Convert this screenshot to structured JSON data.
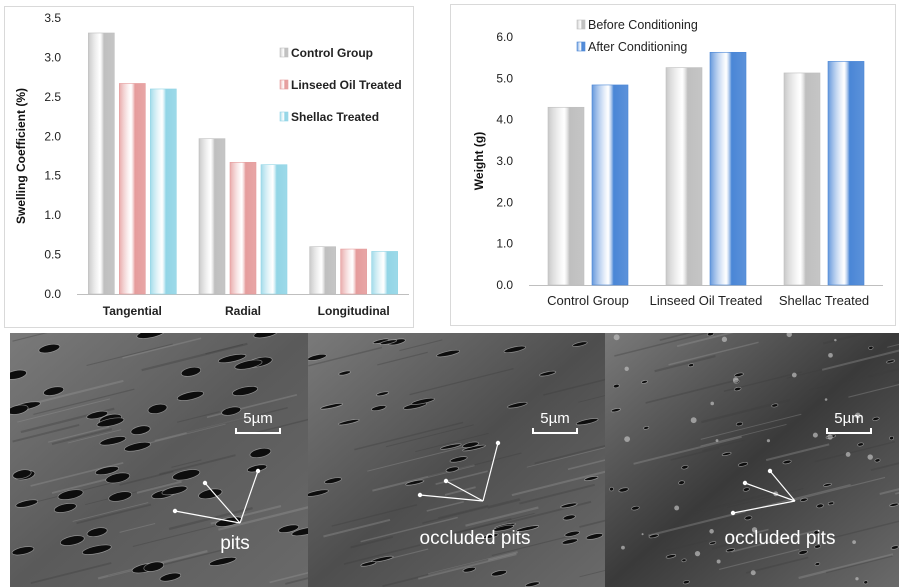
{
  "chart_data": [
    {
      "type": "bar",
      "title": "",
      "xlabel": "",
      "ylabel": "Swelling Coefficient (%)",
      "ylim": [
        0,
        3.5
      ],
      "yticks": [
        "0.0",
        "0.5",
        "1.0",
        "1.5",
        "2.0",
        "2.5",
        "3.0",
        "3.5"
      ],
      "grid": false,
      "legend": "top-right",
      "categories": [
        "Tangential",
        "Radial",
        "Longitudinal"
      ],
      "series": [
        {
          "name": "Control Group",
          "values": [
            3.31,
            1.97,
            0.6
          ],
          "color": "#bfbfbf"
        },
        {
          "name": "Linseed Oil Treated",
          "values": [
            2.67,
            1.67,
            0.57
          ],
          "color": "#e59c9c"
        },
        {
          "name": "Shellac Treated",
          "values": [
            2.6,
            1.64,
            0.54
          ],
          "color": "#92d5e6"
        }
      ]
    },
    {
      "type": "bar",
      "title": "",
      "xlabel": "",
      "ylabel": "Weight (g)",
      "ylim": [
        0,
        6
      ],
      "yticks": [
        "0.0",
        "1.0",
        "2.0",
        "3.0",
        "4.0",
        "5.0",
        "6.0"
      ],
      "grid": false,
      "legend": "top-left",
      "categories": [
        "Control Group",
        "Linseed Oil Treated",
        "Shellac Treated"
      ],
      "series": [
        {
          "name": "Before Conditioning",
          "values": [
            4.3,
            5.26,
            5.13
          ],
          "color": "#bfbfbf"
        },
        {
          "name": "After Conditioning",
          "values": [
            4.84,
            5.63,
            5.41
          ],
          "color": "#4a86d6"
        }
      ]
    }
  ],
  "micrographs": [
    {
      "scale_label": "5µm",
      "annotation": "pits",
      "surface": "#5a5a5a"
    },
    {
      "scale_label": "5µm",
      "annotation": "occluded pits",
      "surface": "#4e4e4e"
    },
    {
      "scale_label": "5µm",
      "annotation": "occluded pits",
      "surface": "#3a3a3a"
    }
  ]
}
